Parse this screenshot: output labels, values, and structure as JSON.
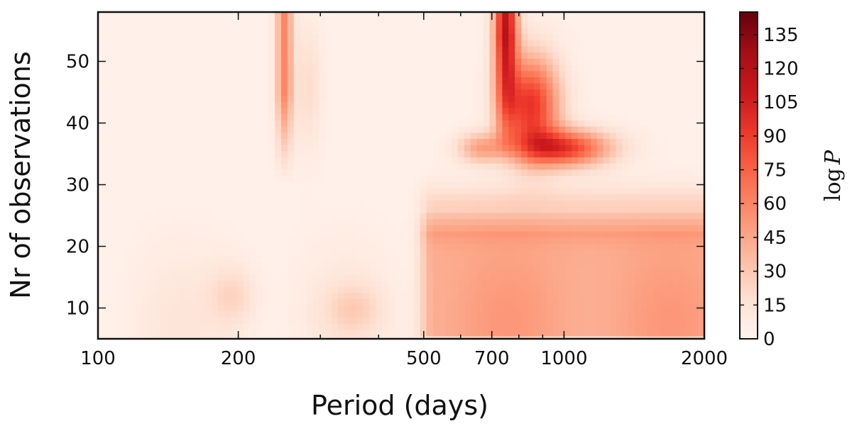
{
  "chart_data": {
    "type": "heatmap",
    "title": "",
    "xlabel": "Period (days)",
    "ylabel": "Nr of observations",
    "x_scale": "log",
    "xlim": [
      100,
      2000
    ],
    "ylim": [
      5,
      58
    ],
    "x_tick_labels": [
      "100",
      "200",
      "500",
      "700",
      "1000",
      "2000"
    ],
    "y_tick_labels": [
      "10",
      "20",
      "30",
      "40",
      "50"
    ],
    "colorbar": {
      "label": "log P",
      "label_parts": {
        "func": "log",
        "var": "P"
      },
      "min": 0,
      "max": 145,
      "tick_labels": [
        "0",
        "15",
        "30",
        "45",
        "60",
        "75",
        "90",
        "105",
        "120",
        "135"
      ],
      "colormap": [
        "#fff5f0",
        "#fee0d2",
        "#fcbba1",
        "#fc9272",
        "#fb6a4a",
        "#ef3b2c",
        "#cb181d",
        "#a50f15",
        "#67000d"
      ]
    },
    "features": [
      {
        "period": 750,
        "nobs_range": [
          35,
          58
        ],
        "peak_logP": 145,
        "desc": "main peak ridge"
      },
      {
        "period": 900,
        "nobs_range": [
          35,
          48
        ],
        "peak_logP": 110
      },
      {
        "period": 1100,
        "nobs_range": [
          33,
          38
        ],
        "peak_logP": 100
      },
      {
        "period": 250,
        "nobs_range": [
          35,
          58
        ],
        "peak_logP": 60
      },
      {
        "period": 1200,
        "nobs_range": [
          5,
          25
        ],
        "peak_logP": 50,
        "desc": "broad plateau"
      }
    ]
  }
}
